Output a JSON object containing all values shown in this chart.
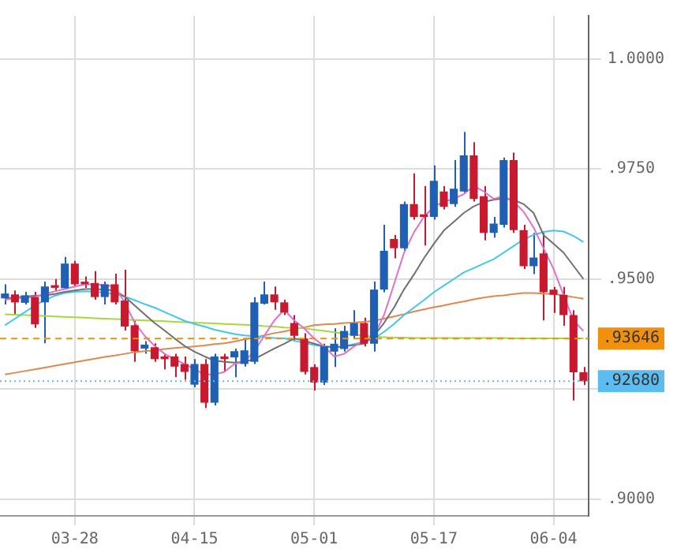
{
  "chart_data": {
    "type": "candlestick",
    "categories": [
      null,
      null,
      null,
      null,
      null,
      null,
      null,
      "03-28",
      null,
      null,
      null,
      null,
      null,
      null,
      null,
      null,
      null,
      null,
      null,
      "04-15",
      null,
      null,
      null,
      null,
      null,
      null,
      null,
      null,
      null,
      null,
      null,
      "05-01",
      null,
      null,
      null,
      null,
      null,
      null,
      null,
      null,
      null,
      null,
      null,
      "05-17",
      null,
      null,
      null,
      null,
      null,
      null,
      null,
      null,
      null,
      null,
      null,
      "06-04",
      null,
      null,
      null
    ],
    "ohlc": [
      [
        0.9456,
        0.9488,
        0.9442,
        0.9467
      ],
      [
        0.9465,
        0.9474,
        0.9418,
        0.9447
      ],
      [
        0.9446,
        0.9471,
        0.9442,
        0.9463
      ],
      [
        0.9459,
        0.9471,
        0.9389,
        0.9397
      ],
      [
        0.9447,
        0.9494,
        0.9354,
        0.9483
      ],
      [
        0.9486,
        0.95,
        0.9471,
        0.948
      ],
      [
        0.9479,
        0.955,
        0.9477,
        0.9535
      ],
      [
        0.9535,
        0.9541,
        0.9483,
        0.9488
      ],
      [
        0.9494,
        0.9506,
        0.948,
        0.9488
      ],
      [
        0.9491,
        0.9518,
        0.9453,
        0.9459
      ],
      [
        0.9459,
        0.9494,
        0.9442,
        0.9488
      ],
      [
        0.9488,
        0.9512,
        0.9442,
        0.9447
      ],
      [
        0.9451,
        0.9521,
        0.9383,
        0.9392
      ],
      [
        0.9395,
        0.9406,
        0.9312,
        0.9336
      ],
      [
        0.9342,
        0.9359,
        0.933,
        0.9351
      ],
      [
        0.9345,
        0.9354,
        0.9312,
        0.9318
      ],
      [
        0.9324,
        0.933,
        0.9295,
        0.9318
      ],
      [
        0.9324,
        0.933,
        0.9277,
        0.9301
      ],
      [
        0.9307,
        0.9324,
        0.9271,
        0.9289
      ],
      [
        0.926,
        0.9318,
        0.9254,
        0.9307
      ],
      [
        0.9307,
        0.9318,
        0.9207,
        0.9219
      ],
      [
        0.9219,
        0.933,
        0.9213,
        0.9324
      ],
      [
        0.9324,
        0.933,
        0.9289,
        0.9318
      ],
      [
        0.9322,
        0.9342,
        0.9277,
        0.9336
      ],
      [
        0.9307,
        0.9365,
        0.9301,
        0.9338
      ],
      [
        0.9312,
        0.9459,
        0.9307,
        0.9447
      ],
      [
        0.9444,
        0.9494,
        0.9442,
        0.9465
      ],
      [
        0.9465,
        0.9483,
        0.943,
        0.9447
      ],
      [
        0.9447,
        0.9453,
        0.9418,
        0.9424
      ],
      [
        0.94,
        0.9418,
        0.9359,
        0.9371
      ],
      [
        0.9365,
        0.9377,
        0.9283,
        0.9289
      ],
      [
        0.93,
        0.9306,
        0.9247,
        0.9265
      ],
      [
        0.9265,
        0.9353,
        0.9259,
        0.9347
      ],
      [
        0.9335,
        0.9388,
        0.93,
        0.9353
      ],
      [
        0.9341,
        0.9394,
        0.9335,
        0.9382
      ],
      [
        0.9371,
        0.9429,
        0.9365,
        0.94
      ],
      [
        0.94,
        0.9412,
        0.9347,
        0.9353
      ],
      [
        0.9353,
        0.9494,
        0.9335,
        0.9476
      ],
      [
        0.9476,
        0.9623,
        0.947,
        0.9564
      ],
      [
        0.9591,
        0.96,
        0.9547,
        0.957
      ],
      [
        0.957,
        0.9676,
        0.9564,
        0.967
      ],
      [
        0.967,
        0.974,
        0.9635,
        0.9641
      ],
      [
        0.9647,
        0.9711,
        0.9576,
        0.9641
      ],
      [
        0.9641,
        0.9758,
        0.9635,
        0.9723
      ],
      [
        0.9699,
        0.9711,
        0.9658,
        0.9664
      ],
      [
        0.967,
        0.977,
        0.9664,
        0.9705
      ],
      [
        0.9699,
        0.9834,
        0.9693,
        0.9781
      ],
      [
        0.9781,
        0.9811,
        0.9676,
        0.9682
      ],
      [
        0.9688,
        0.9711,
        0.9588,
        0.9605
      ],
      [
        0.9605,
        0.9641,
        0.9594,
        0.9626
      ],
      [
        0.9623,
        0.9776,
        0.9617,
        0.977
      ],
      [
        0.977,
        0.9787,
        0.9605,
        0.9611
      ],
      [
        0.9611,
        0.9623,
        0.9523,
        0.9529
      ],
      [
        0.9529,
        0.9605,
        0.9511,
        0.9549
      ],
      [
        0.9558,
        0.9605,
        0.9406,
        0.947
      ],
      [
        0.9476,
        0.9482,
        0.9423,
        0.9464
      ],
      [
        0.9464,
        0.9482,
        0.9394,
        0.9418
      ],
      [
        0.9418,
        0.9429,
        0.9224,
        0.9288
      ],
      [
        0.9288,
        0.93,
        0.9259,
        0.9268
      ]
    ],
    "colors": [
      "#1f5fb4",
      "#c8192e",
      "#1f5fb4",
      "#c8192e",
      "#1f5fb4",
      "#c8192e",
      "#1f5fb4",
      "#c8192e",
      "#c8192e",
      "#c8192e",
      "#1f5fb4",
      "#c8192e",
      "#c8192e",
      "#c8192e",
      "#1f5fb4",
      "#c8192e",
      "#c8192e",
      "#c8192e",
      "#c8192e",
      "#1f5fb4",
      "#c8192e",
      "#1f5fb4",
      "#c8192e",
      "#1f5fb4",
      "#1f5fb4",
      "#1f5fb4",
      "#1f5fb4",
      "#c8192e",
      "#c8192e",
      "#c8192e",
      "#c8192e",
      "#c8192e",
      "#1f5fb4",
      "#1f5fb4",
      "#1f5fb4",
      "#1f5fb4",
      "#c8192e",
      "#1f5fb4",
      "#1f5fb4",
      "#c8192e",
      "#1f5fb4",
      "#c8192e",
      "#c8192e",
      "#1f5fb4",
      "#c8192e",
      "#1f5fb4",
      "#1f5fb4",
      "#c8192e",
      "#c8192e",
      "#1f5fb4",
      "#1f5fb4",
      "#c8192e",
      "#c8192e",
      "#1f5fb4",
      "#c8192e",
      "#c8192e",
      "#c8192e",
      "#c8192e",
      "#c8192e"
    ],
    "series": [
      {
        "type": "line",
        "color": "#e070d0",
        "values": [
          0.9453,
          0.9456,
          0.9458,
          0.9459,
          0.9466,
          0.9472,
          0.9477,
          0.9483,
          0.9488,
          0.9488,
          0.9486,
          0.9483,
          0.9447,
          0.9401,
          0.9371,
          0.9348,
          0.933,
          0.9318,
          0.9307,
          0.9295,
          0.9283,
          0.9283,
          0.9289,
          0.9307,
          0.9312,
          0.9336,
          0.9371,
          0.9406,
          0.943,
          0.9406,
          0.9388,
          0.9365,
          0.9347,
          0.9324,
          0.933,
          0.9347,
          0.9359,
          0.9371,
          0.9418,
          0.9488,
          0.9559,
          0.9606,
          0.9641,
          0.9664,
          0.9676,
          0.9682,
          0.9693,
          0.9711,
          0.9699,
          0.9682,
          0.9688,
          0.9676,
          0.9653,
          0.9617,
          0.957,
          0.9523,
          0.9464,
          0.9406,
          0.9382
        ]
      },
      {
        "type": "line",
        "color": "#707070",
        "values": [
          0.9456,
          0.9458,
          0.946,
          0.9462,
          0.9463,
          0.9466,
          0.9471,
          0.9474,
          0.9477,
          0.9477,
          0.9476,
          0.9474,
          0.946,
          0.944,
          0.942,
          0.94,
          0.9383,
          0.9365,
          0.9348,
          0.9335,
          0.9324,
          0.9315,
          0.9312,
          0.931,
          0.9312,
          0.9318,
          0.933,
          0.9342,
          0.9353,
          0.9365,
          0.936,
          0.9353,
          0.9347,
          0.9345,
          0.9347,
          0.935,
          0.9353,
          0.9371,
          0.94,
          0.9435,
          0.9476,
          0.951,
          0.9547,
          0.958,
          0.961,
          0.963,
          0.965,
          0.9665,
          0.9675,
          0.968,
          0.9683,
          0.968,
          0.967,
          0.965,
          0.96,
          0.958,
          0.956,
          0.953,
          0.95
        ]
      },
      {
        "type": "line",
        "color": "#40c8e8",
        "values": [
          0.9395,
          0.941,
          0.9425,
          0.944,
          0.9452,
          0.9462,
          0.9468,
          0.9471,
          0.9472,
          0.9471,
          0.9469,
          0.9466,
          0.946,
          0.9452,
          0.9443,
          0.9435,
          0.9425,
          0.9415,
          0.9405,
          0.9398,
          0.9392,
          0.9385,
          0.938,
          0.9375,
          0.9372,
          0.937,
          0.9368,
          0.9366,
          0.9365,
          0.936,
          0.9355,
          0.935,
          0.9347,
          0.9345,
          0.9347,
          0.9352,
          0.9358,
          0.9365,
          0.938,
          0.9398,
          0.9418,
          0.9435,
          0.9452,
          0.947,
          0.9485,
          0.95,
          0.9515,
          0.9525,
          0.9535,
          0.9545,
          0.956,
          0.9575,
          0.959,
          0.96,
          0.9607,
          0.961,
          0.9608,
          0.9598,
          0.9584
        ]
      },
      {
        "type": "line",
        "color": "#a8d840",
        "values": [
          0.942,
          0.9419,
          0.9418,
          0.9417,
          0.9416,
          0.9415,
          0.9414,
          0.9413,
          0.9412,
          0.9411,
          0.941,
          0.9409,
          0.9408,
          0.9407,
          0.9406,
          0.9405,
          0.9404,
          0.9403,
          0.9402,
          0.9401,
          0.94,
          0.9399,
          0.9398,
          0.9397,
          0.9396,
          0.9395,
          0.9393,
          0.9392,
          0.939,
          0.9389,
          0.9388,
          0.9385,
          0.9382,
          0.9379,
          0.9376,
          0.9373,
          0.9371,
          0.9369,
          0.9368,
          0.9367,
          0.9367,
          0.9366,
          0.9366,
          0.9366,
          0.9366,
          0.9366,
          0.9366,
          0.9366,
          0.9366,
          0.9366,
          0.9366,
          0.9365,
          0.9365,
          0.9365,
          0.9365,
          0.9365,
          0.9365,
          null,
          0.9365
        ]
      },
      {
        "type": "line",
        "color": "#e08850",
        "values": [
          0.9283,
          0.9287,
          0.9291,
          0.9295,
          0.9299,
          0.9303,
          0.9307,
          0.9311,
          0.9315,
          0.9319,
          0.9323,
          0.9326,
          0.933,
          0.9334,
          0.9336,
          0.9338,
          0.9341,
          0.9343,
          0.9345,
          0.9347,
          0.9349,
          0.9352,
          0.9354,
          0.9358,
          0.9363,
          0.9367,
          0.9372,
          0.9377,
          0.9381,
          0.9386,
          0.939,
          0.9395,
          0.9397,
          0.9398,
          0.94,
          0.9401,
          0.9403,
          0.9405,
          0.941,
          0.9415,
          0.942,
          0.9426,
          0.9431,
          0.9436,
          0.944,
          0.9445,
          0.9449,
          0.9454,
          0.9458,
          0.9461,
          0.9463,
          0.9466,
          0.9468,
          0.9468,
          0.9467,
          0.9466,
          0.9463,
          0.9459,
          0.9455
        ]
      }
    ],
    "ylim": [
      0.8962,
      1.0098
    ],
    "yticks": [
      {
        "value": 0.9,
        "label": ".9000"
      },
      {
        "value": 0.925,
        "label": null
      },
      {
        "value": 0.95,
        "label": ".9500"
      },
      {
        "value": 0.975,
        "label": ".9750"
      },
      {
        "value": 1.0,
        "label": "1.0000"
      }
    ],
    "ref_lines": [
      {
        "axis": "y",
        "value": 0.93646,
        "label": ".93646",
        "color": "#f0900c",
        "line_style": "dashed"
      },
      {
        "axis": "y",
        "value": 0.9268,
        "label": ".92680",
        "color": "#5cbcf0",
        "line_style": "dotted"
      }
    ],
    "grid": true,
    "legend": false,
    "marker": "none"
  }
}
